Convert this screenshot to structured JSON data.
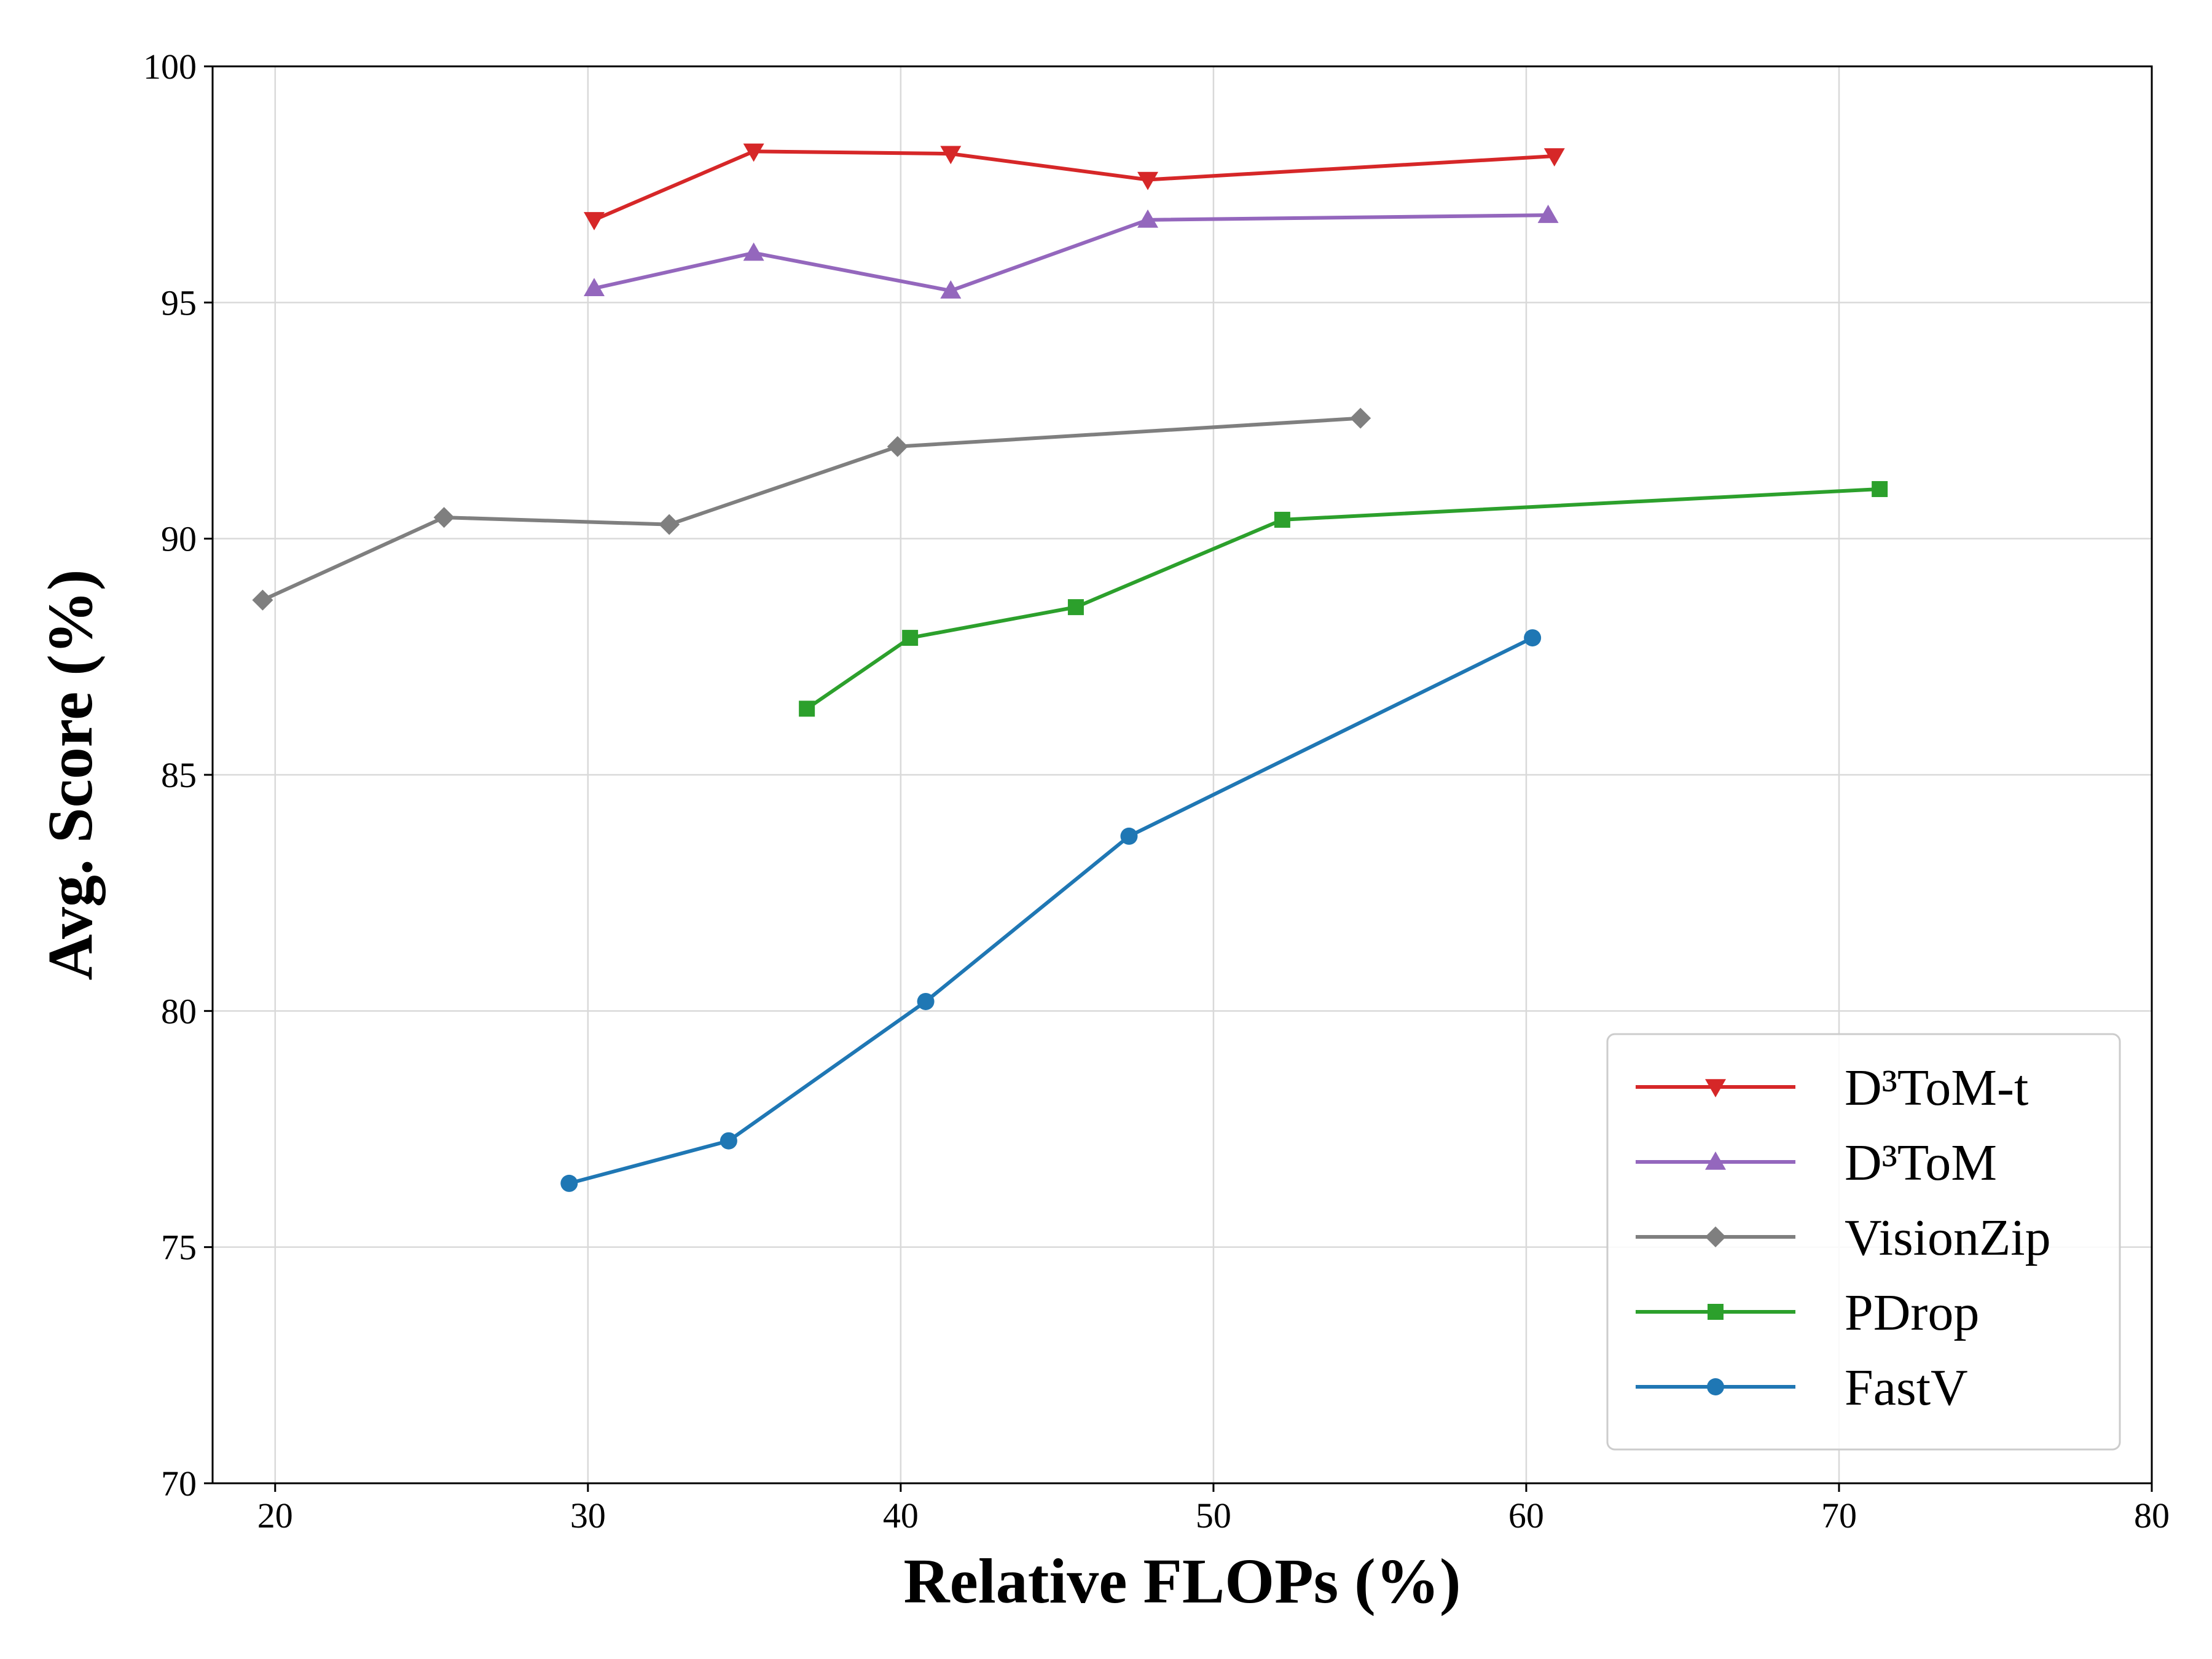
{
  "chart_data": {
    "type": "line",
    "title": "",
    "xlabel": "Relative FLOPs (%)",
    "ylabel": "Avg. Score (%)",
    "xlim": [
      18,
      80
    ],
    "ylim": [
      70,
      100
    ],
    "xticks": [
      20,
      30,
      40,
      50,
      60,
      70,
      80
    ],
    "yticks": [
      70,
      75,
      80,
      85,
      90,
      95,
      100
    ],
    "grid": true,
    "legend_position": "bottom-right",
    "series": [
      {
        "name": "D³ToM-t",
        "color": "#d62728",
        "marker": "triangle-down",
        "x": [
          30.2,
          35.3,
          41.6,
          47.9,
          60.9
        ],
        "y": [
          96.75,
          98.2,
          98.15,
          97.6,
          98.1
        ]
      },
      {
        "name": "D³ToM",
        "color": "#9467bd",
        "marker": "triangle-up",
        "x": [
          30.2,
          35.3,
          41.6,
          47.9,
          60.7
        ],
        "y": [
          95.3,
          96.05,
          95.25,
          96.75,
          96.85
        ]
      },
      {
        "name": "VisionZip",
        "color": "#7f7f7f",
        "marker": "diamond",
        "x": [
          19.6,
          25.4,
          32.6,
          39.9,
          54.7
        ],
        "y": [
          88.7,
          90.45,
          90.3,
          91.95,
          92.55
        ]
      },
      {
        "name": "PDrop",
        "color": "#2ca02c",
        "marker": "square",
        "x": [
          37.0,
          40.3,
          45.6,
          52.2,
          71.3
        ],
        "y": [
          86.4,
          87.9,
          88.55,
          90.4,
          91.05
        ]
      },
      {
        "name": "FastV",
        "color": "#1f77b4",
        "marker": "circle",
        "x": [
          29.4,
          34.5,
          40.8,
          47.3,
          60.2
        ],
        "y": [
          76.35,
          77.25,
          80.2,
          83.7,
          87.9
        ]
      }
    ]
  }
}
